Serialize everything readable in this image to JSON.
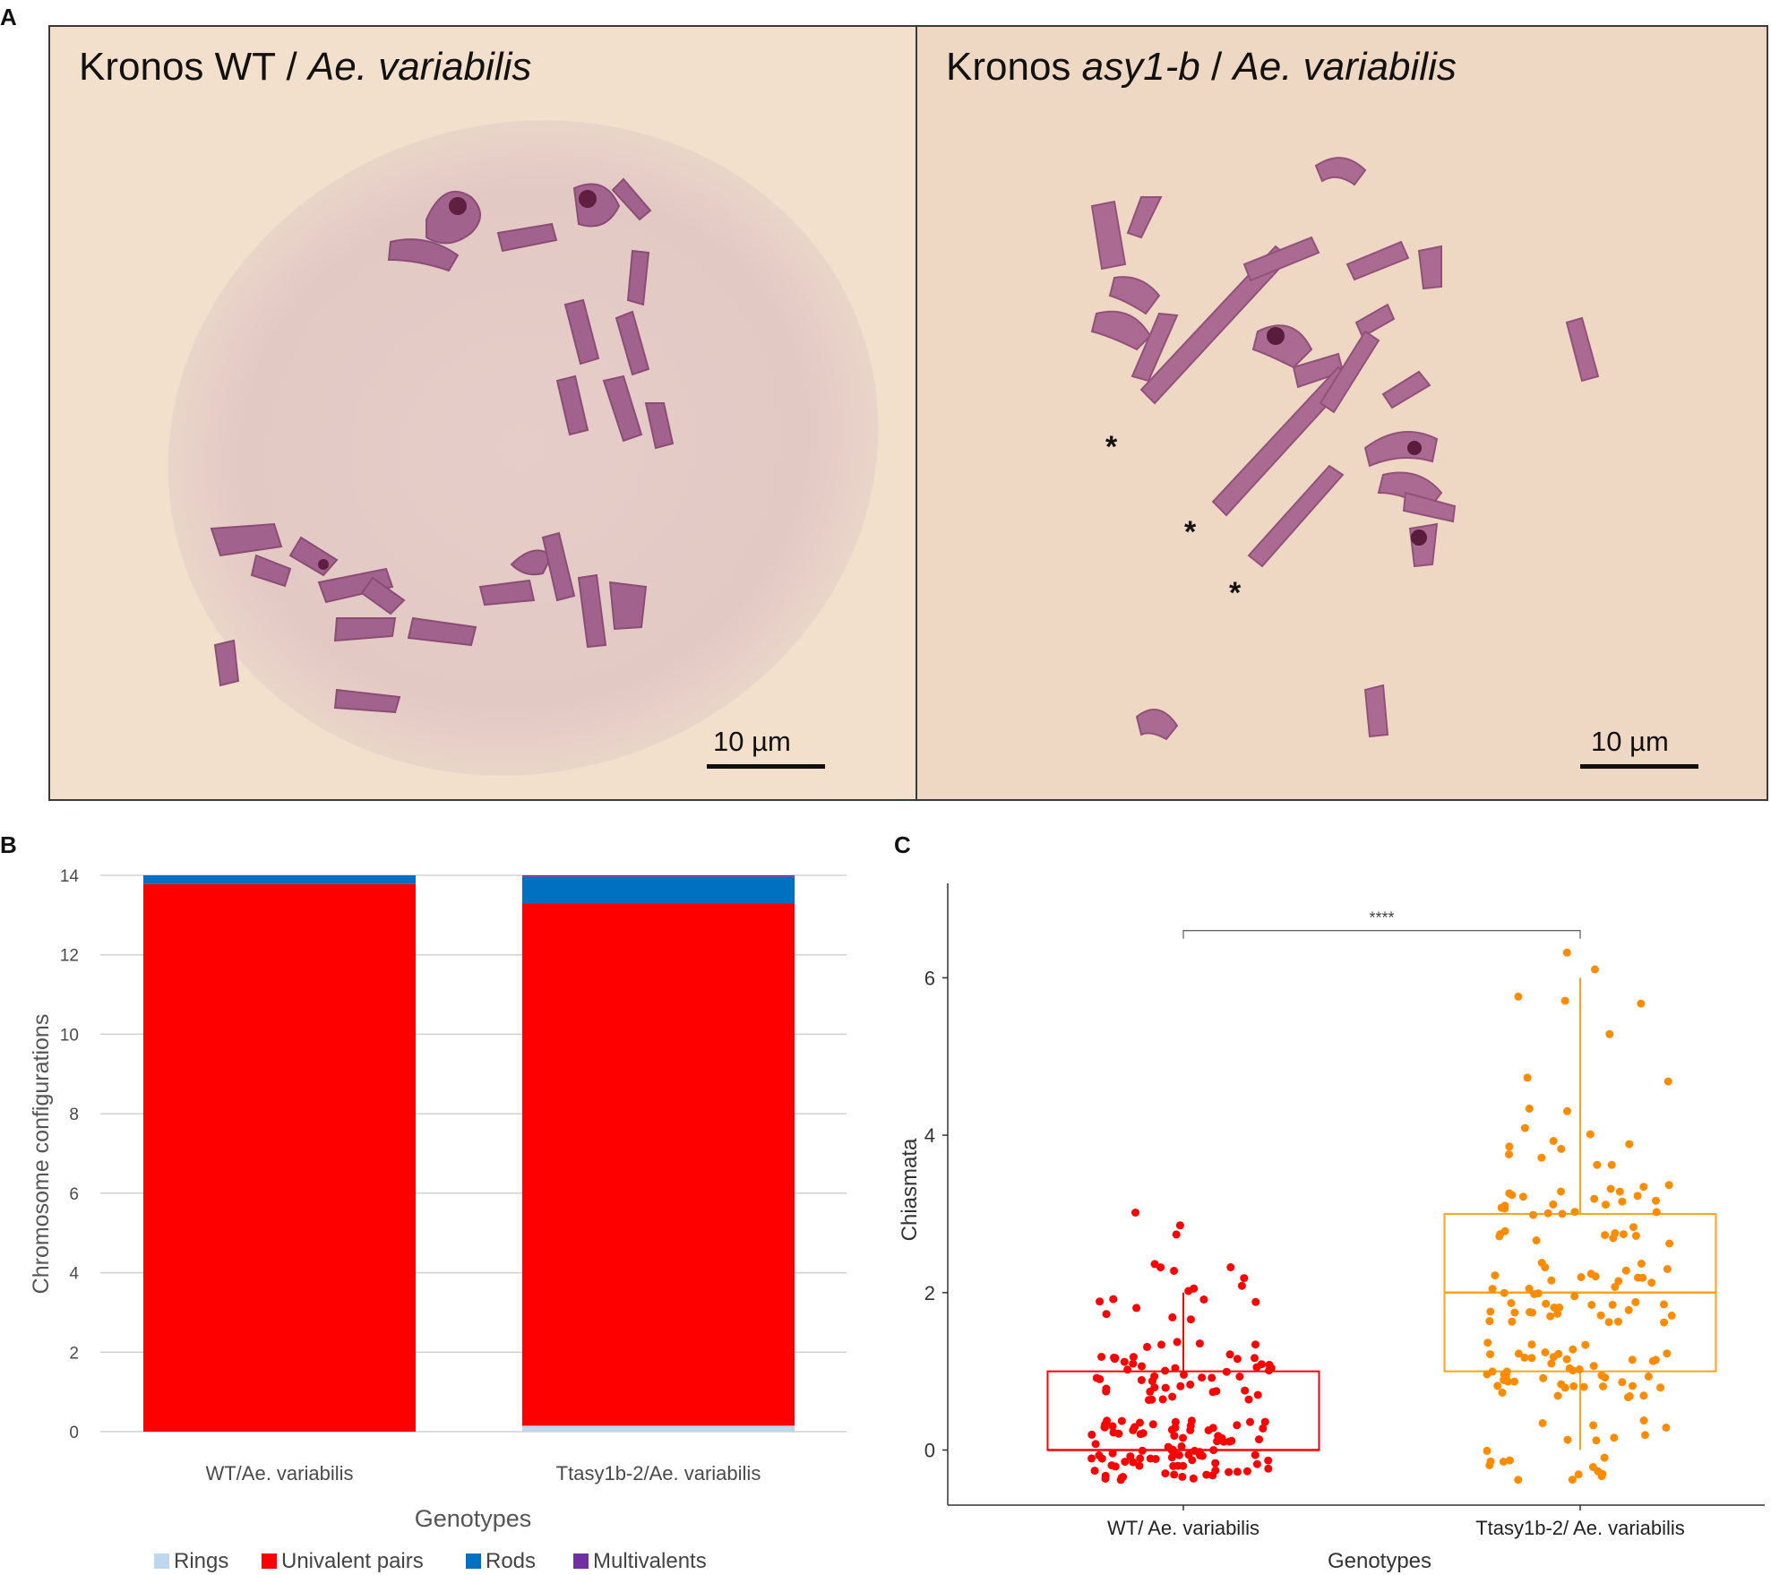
{
  "panels": {
    "a": {
      "letter": "A",
      "left": {
        "title_plain": "Kronos WT / ",
        "title_italic": "Ae. variabilis",
        "scalebar": "10 µm"
      },
      "right": {
        "title_plain": "Kronos ",
        "title_italic_1": "asy1-b",
        "title_mid": " / ",
        "title_italic_2": "Ae. variabilis",
        "scalebar": "10 µm",
        "asterisks": [
          "*",
          "*",
          "*"
        ]
      }
    },
    "b": {
      "letter": "B"
    },
    "c": {
      "letter": "C"
    }
  },
  "colors": {
    "rings": "#bdd7ee",
    "univalent": "#ff0000",
    "rods": "#0070c0",
    "multivalents": "#7030a0",
    "wt_points": "#ff0000",
    "mut_points": "#ff8c00",
    "mut_box": "#ffa31a"
  },
  "chart_data": [
    {
      "type": "bar",
      "stacked": true,
      "xlabel": "Genotypes",
      "ylabel": "Chromosome configurations",
      "ylim": [
        0,
        14
      ],
      "yticks": [
        0,
        2,
        4,
        6,
        8,
        10,
        12,
        14
      ],
      "grid": true,
      "legend": "bottom",
      "categories": [
        "WT/Ae. variabilis",
        "Ttasy1b-2/Ae. variabilis"
      ],
      "series": [
        {
          "name": "Rings",
          "values": [
            0.0,
            0.15
          ]
        },
        {
          "name": "Univalent pairs",
          "values": [
            13.78,
            13.15
          ]
        },
        {
          "name": "Rods",
          "values": [
            0.22,
            0.66
          ]
        },
        {
          "name": "Multivalents",
          "values": [
            0.0,
            0.04
          ]
        }
      ]
    },
    {
      "type": "scatter",
      "subtype": "boxplot-with-jitter",
      "xlabel": "Genotypes",
      "ylabel": "Chiasmata",
      "ylim": [
        -0.7,
        7.2
      ],
      "yticks": [
        0,
        2,
        4,
        6
      ],
      "categories": [
        "WT/ Ae. variabilis",
        "Ttasy1b-2/ Ae. variabilis"
      ],
      "significance": "****",
      "boxes": [
        {
          "min": 0,
          "q1": 0,
          "median": 0,
          "q3": 1,
          "max": 2
        },
        {
          "min": 0,
          "q1": 1,
          "median": 2,
          "q3": 3,
          "max": 6
        }
      ],
      "points": [
        [
          0,
          0,
          0,
          0,
          0,
          0,
          0,
          0,
          0,
          0,
          0,
          0,
          0,
          0,
          0,
          0,
          0,
          0,
          0,
          0,
          0,
          0,
          0,
          0,
          0,
          0,
          0,
          0,
          0,
          0,
          0,
          0,
          0,
          0,
          0,
          0,
          0,
          0,
          0,
          0,
          0,
          0,
          0,
          0,
          0,
          0,
          0,
          0,
          0,
          0,
          0,
          0,
          0,
          0,
          0,
          0,
          0,
          0,
          0,
          0,
          0,
          0,
          0,
          0,
          0,
          0,
          0,
          0,
          0,
          0,
          0,
          0,
          0,
          0,
          0,
          0,
          0,
          0,
          0,
          0,
          0,
          0,
          0,
          0,
          0,
          0,
          0,
          0,
          0,
          0,
          1,
          1,
          1,
          1,
          1,
          1,
          1,
          1,
          1,
          1,
          1,
          1,
          1,
          1,
          1,
          1,
          1,
          1,
          1,
          1,
          1,
          1,
          1,
          1,
          1,
          1,
          1,
          1,
          1,
          1,
          1,
          1,
          1,
          1,
          1,
          1,
          1,
          1,
          1,
          1,
          1,
          1,
          1,
          1,
          1,
          1,
          1,
          1,
          1,
          1,
          2,
          2,
          2,
          2,
          2,
          2,
          2,
          2,
          2,
          2,
          2,
          2,
          2,
          2,
          2,
          2,
          3,
          3,
          3
        ],
        [
          0,
          0,
          0,
          0,
          0,
          0,
          0,
          0,
          0,
          0,
          0,
          0,
          0,
          0,
          0,
          0,
          0,
          0,
          0,
          0,
          0,
          1,
          1,
          1,
          1,
          1,
          1,
          1,
          1,
          1,
          1,
          1,
          1,
          1,
          1,
          1,
          1,
          1,
          1,
          1,
          1,
          1,
          1,
          1,
          1,
          1,
          1,
          1,
          1,
          1,
          1,
          1,
          1,
          1,
          1,
          1,
          1,
          1,
          1,
          1,
          1,
          1,
          1,
          1,
          1,
          1,
          1,
          1,
          1,
          2,
          2,
          2,
          2,
          2,
          2,
          2,
          2,
          2,
          2,
          2,
          2,
          2,
          2,
          2,
          2,
          2,
          2,
          2,
          2,
          2,
          2,
          2,
          2,
          2,
          2,
          2,
          2,
          2,
          2,
          2,
          2,
          2,
          2,
          2,
          2,
          2,
          2,
          2,
          2,
          2,
          2,
          2,
          3,
          3,
          3,
          3,
          3,
          3,
          3,
          3,
          3,
          3,
          3,
          3,
          3,
          3,
          3,
          3,
          3,
          3,
          3,
          3,
          3,
          3,
          3,
          3,
          3,
          3,
          3,
          3,
          3,
          3,
          3,
          3,
          3,
          4,
          4,
          4,
          4,
          4,
          4,
          4,
          4,
          4,
          4,
          4,
          4,
          5,
          5,
          5,
          6,
          6,
          6,
          6,
          6
        ]
      ]
    }
  ]
}
